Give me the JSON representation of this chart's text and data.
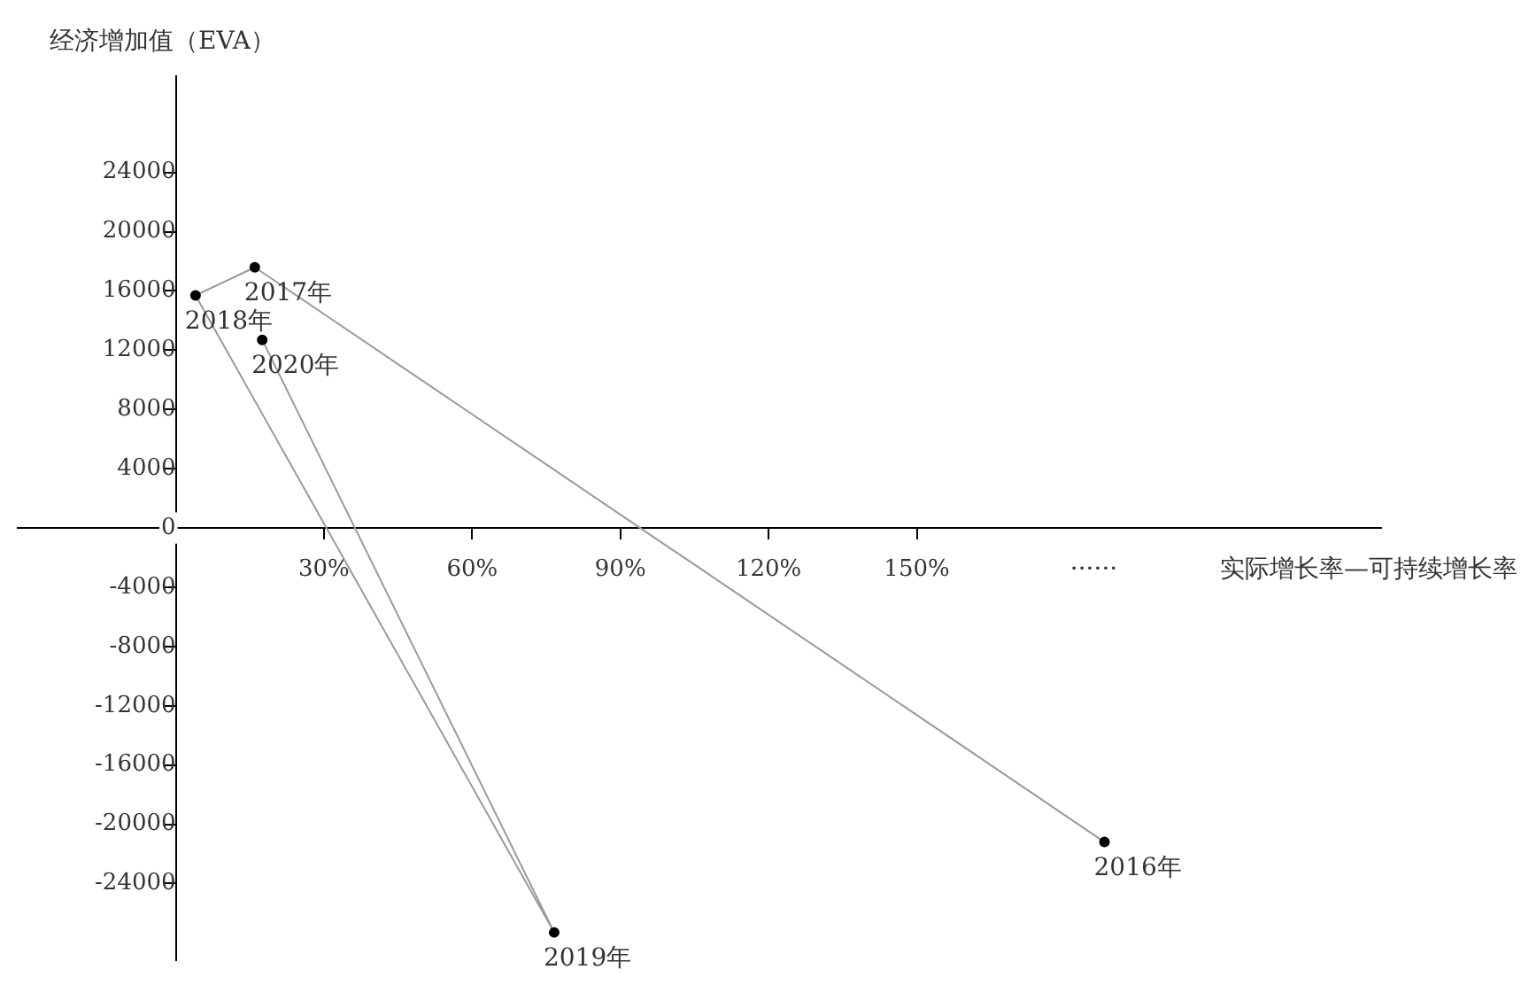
{
  "chart_data": {
    "type": "line",
    "ylabel": "经济增加值（EVA）",
    "xlabel": "实际增长率—可持续增长率",
    "x": [
      188,
      16,
      4,
      76.6,
      17.5
    ],
    "series": [
      {
        "color": "#000000",
        "values": [
          -21200,
          17600,
          15700,
          -27300,
          12700
        ]
      }
    ],
    "marker": "circle",
    "grid": false,
    "legend": false,
    "xlim": [
      -32,
      244
    ],
    "ylim": [
      -29200,
      30500
    ],
    "xticks": [
      {
        "value": 30,
        "label": "30%"
      },
      {
        "value": 60,
        "label": "60%"
      },
      {
        "value": 90,
        "label": "90%"
      },
      {
        "value": 120,
        "label": "120%"
      },
      {
        "value": 150,
        "label": "150%"
      }
    ],
    "yticks": [
      -24000,
      -20000,
      -16000,
      -12000,
      -8000,
      -4000,
      0,
      4000,
      8000,
      12000,
      16000,
      20000,
      24000
    ],
    "annotations": [
      {
        "text": "2016年",
        "x": 188,
        "y": -21200
      },
      {
        "text": "2017年",
        "x": 16,
        "y": 17600
      },
      {
        "text": "2018年",
        "x": 4,
        "y": 15700
      },
      {
        "text": "2019年",
        "x": 76.6,
        "y": -27300
      },
      {
        "text": "2020年",
        "x": 17.5,
        "y": 12700
      },
      "······"
    ]
  }
}
